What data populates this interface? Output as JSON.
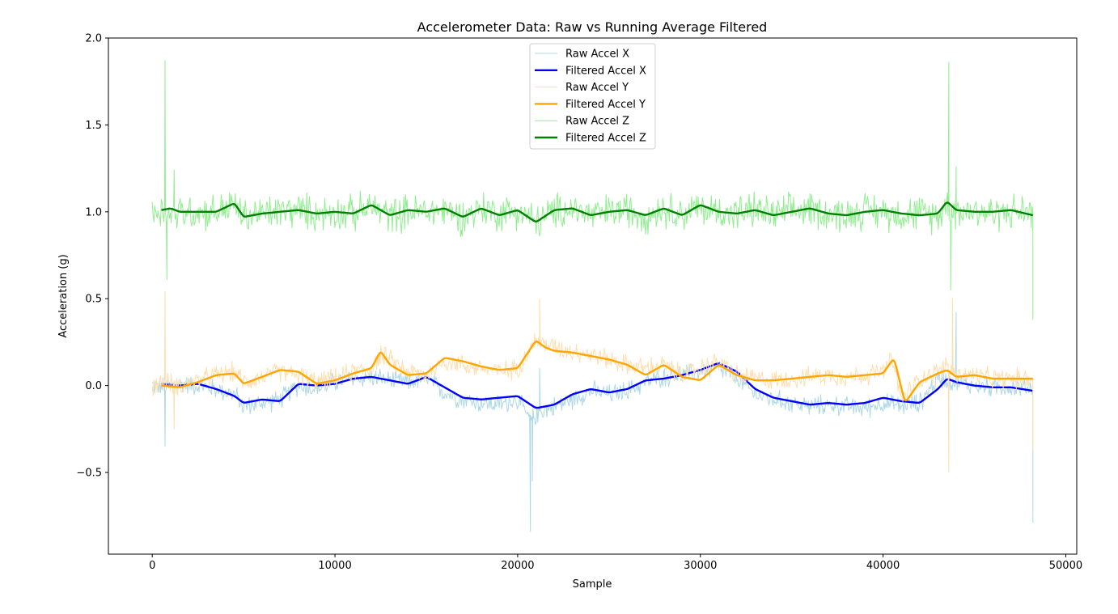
{
  "chart_data": {
    "type": "line",
    "title": "Accelerometer Data: Raw vs Running Average Filtered",
    "xlabel": "Sample",
    "ylabel": "Acceleration (g)",
    "xlim": [
      -2400,
      50600
    ],
    "ylim": [
      -0.97,
      2.0
    ],
    "xticks": [
      0,
      10000,
      20000,
      30000,
      40000,
      50000
    ],
    "xtick_labels": [
      "0",
      "10000",
      "20000",
      "30000",
      "40000",
      "50000"
    ],
    "yticks": [
      -0.5,
      0.0,
      0.5,
      1.0,
      1.5,
      2.0
    ],
    "ytick_labels": [
      "−0.5",
      "0.0",
      "0.5",
      "1.0",
      "1.5",
      "2.0"
    ],
    "grid": false,
    "legend_position": "top-center",
    "series": [
      {
        "name": "Raw Accel X",
        "color": "#add8e6",
        "style": "raw",
        "x": [
          0,
          700,
          1500,
          2500,
          3500,
          4500,
          5000,
          6000,
          7000,
          8000,
          9000,
          10000,
          11000,
          12000,
          13000,
          14000,
          15000,
          16000,
          17000,
          18000,
          19000,
          20000,
          20700,
          21200,
          22000,
          23000,
          24000,
          25000,
          26000,
          27000,
          28000,
          29000,
          30000,
          31000,
          32000,
          33000,
          34000,
          35000,
          36000,
          37000,
          38000,
          39000,
          40000,
          41000,
          42000,
          43000,
          44000,
          45000,
          46000,
          47000,
          48200
        ],
        "y": [
          0.0,
          -0.01,
          0.01,
          0.0,
          -0.02,
          -0.05,
          -0.12,
          -0.1,
          -0.08,
          0.0,
          -0.02,
          0.02,
          0.04,
          0.05,
          0.03,
          0.02,
          0.04,
          -0.04,
          -0.08,
          -0.1,
          -0.11,
          -0.08,
          -0.2,
          -0.15,
          -0.12,
          -0.08,
          -0.03,
          -0.05,
          -0.03,
          0.02,
          0.05,
          0.06,
          0.08,
          0.1,
          0.04,
          -0.05,
          -0.08,
          -0.1,
          -0.12,
          -0.11,
          -0.12,
          -0.13,
          -0.1,
          -0.12,
          -0.1,
          0.04,
          0.02,
          0.0,
          -0.01,
          -0.01,
          -0.02
        ]
      },
      {
        "name": "Filtered Accel X",
        "color": "#0000ff",
        "style": "filtered",
        "x": [
          500,
          1500,
          2500,
          3500,
          4500,
          5000,
          6000,
          7000,
          8000,
          9000,
          10000,
          11000,
          12000,
          13000,
          14000,
          15000,
          16000,
          17000,
          18000,
          19000,
          20000,
          21000,
          22000,
          23000,
          24000,
          25000,
          26000,
          27000,
          28000,
          29000,
          30000,
          31000,
          32000,
          33000,
          34000,
          35000,
          36000,
          37000,
          38000,
          39000,
          40000,
          41000,
          42000,
          43000,
          43500,
          44000,
          45000,
          46000,
          47000,
          48200
        ],
        "y": [
          0.01,
          0.0,
          0.01,
          -0.02,
          -0.06,
          -0.1,
          -0.08,
          -0.09,
          0.01,
          0.0,
          0.01,
          0.04,
          0.05,
          0.03,
          0.01,
          0.05,
          -0.01,
          -0.07,
          -0.08,
          -0.07,
          -0.06,
          -0.13,
          -0.11,
          -0.05,
          -0.02,
          -0.04,
          -0.02,
          0.03,
          0.04,
          0.06,
          0.09,
          0.13,
          0.08,
          -0.02,
          -0.07,
          -0.09,
          -0.11,
          -0.1,
          -0.11,
          -0.1,
          -0.07,
          -0.09,
          -0.1,
          -0.02,
          0.04,
          0.02,
          0.0,
          -0.01,
          -0.01,
          -0.03
        ]
      },
      {
        "name": "Raw Accel Y",
        "color": "#ffdead",
        "style": "raw",
        "x": [
          0,
          700,
          1500,
          2500,
          3500,
          4500,
          5000,
          6000,
          7000,
          8000,
          9000,
          10000,
          11000,
          12000,
          12500,
          13000,
          14000,
          15000,
          16000,
          17000,
          18000,
          19000,
          20000,
          21000,
          22000,
          23000,
          24000,
          25000,
          26000,
          27000,
          28000,
          29000,
          30000,
          31000,
          32000,
          33000,
          34000,
          35000,
          36000,
          37000,
          38000,
          39000,
          40000,
          40500,
          41000,
          42000,
          43000,
          43500,
          44000,
          45000,
          46000,
          47000,
          48200
        ],
        "y": [
          0.0,
          0.02,
          0.0,
          0.03,
          0.06,
          0.08,
          0.02,
          0.05,
          0.08,
          0.06,
          0.02,
          0.04,
          0.08,
          0.1,
          0.18,
          0.15,
          0.08,
          0.06,
          0.14,
          0.12,
          0.1,
          0.08,
          0.1,
          0.26,
          0.22,
          0.2,
          0.18,
          0.15,
          0.12,
          0.1,
          0.12,
          0.06,
          0.1,
          0.14,
          0.06,
          0.04,
          0.03,
          0.04,
          0.05,
          0.06,
          0.05,
          0.06,
          0.08,
          0.15,
          -0.08,
          0.04,
          0.08,
          0.12,
          0.06,
          0.06,
          0.04,
          0.04,
          0.04
        ]
      },
      {
        "name": "Filtered Accel Y",
        "color": "#ffa500",
        "style": "filtered",
        "x": [
          500,
          1500,
          2500,
          3500,
          4500,
          5000,
          6000,
          7000,
          8000,
          9000,
          10000,
          11000,
          12000,
          12500,
          13000,
          14000,
          15000,
          16000,
          17000,
          18000,
          19000,
          20000,
          21000,
          21500,
          22000,
          23000,
          24000,
          25000,
          26000,
          27000,
          28000,
          29000,
          30000,
          31000,
          32000,
          33000,
          34000,
          35000,
          36000,
          37000,
          38000,
          39000,
          40000,
          40600,
          41200,
          42000,
          43000,
          43500,
          44000,
          45000,
          46000,
          47000,
          48200
        ],
        "y": [
          0.0,
          -0.01,
          0.02,
          0.06,
          0.07,
          0.01,
          0.05,
          0.09,
          0.08,
          0.01,
          0.03,
          0.07,
          0.1,
          0.2,
          0.12,
          0.06,
          0.07,
          0.16,
          0.14,
          0.11,
          0.09,
          0.1,
          0.26,
          0.22,
          0.2,
          0.19,
          0.17,
          0.15,
          0.12,
          0.06,
          0.12,
          0.05,
          0.03,
          0.12,
          0.06,
          0.03,
          0.03,
          0.04,
          0.05,
          0.06,
          0.05,
          0.06,
          0.07,
          0.16,
          -0.1,
          0.02,
          0.07,
          0.09,
          0.05,
          0.06,
          0.04,
          0.04,
          0.04
        ]
      },
      {
        "name": "Raw Accel Z",
        "color": "#90ee90",
        "style": "raw",
        "x": [
          0,
          500,
          700,
          1000,
          1500,
          2500,
          3500,
          4500,
          5000,
          6000,
          7000,
          8000,
          9000,
          10000,
          11000,
          12000,
          13000,
          14000,
          15000,
          16000,
          17000,
          18000,
          19000,
          20000,
          21000,
          22000,
          23000,
          24000,
          25000,
          26000,
          27000,
          28000,
          29000,
          30000,
          31000,
          32000,
          33000,
          34000,
          35000,
          36000,
          37000,
          38000,
          39000,
          40000,
          41000,
          42000,
          43000,
          43600,
          44000,
          45000,
          46000,
          47000,
          48200
        ],
        "y": [
          1.0,
          1.0,
          1.02,
          0.98,
          1.0,
          1.0,
          1.0,
          1.04,
          0.97,
          0.99,
          1.0,
          1.01,
          0.99,
          1.0,
          0.99,
          1.03,
          0.98,
          1.0,
          1.0,
          1.01,
          0.97,
          1.02,
          0.99,
          1.01,
          0.94,
          1.0,
          1.02,
          0.98,
          1.0,
          1.01,
          0.98,
          1.02,
          0.99,
          1.02,
          1.0,
          0.99,
          1.01,
          0.98,
          1.0,
          1.02,
          0.99,
          0.98,
          1.01,
          1.0,
          0.99,
          0.99,
          0.98,
          1.05,
          1.0,
          1.01,
          0.99,
          1.0,
          1.0
        ]
      },
      {
        "name": "Filtered Accel Z",
        "color": "#008000",
        "style": "filtered",
        "x": [
          500,
          1000,
          1500,
          2500,
          3500,
          4500,
          5000,
          6000,
          7000,
          8000,
          9000,
          10000,
          11000,
          12000,
          13000,
          14000,
          15000,
          16000,
          17000,
          18000,
          19000,
          20000,
          21000,
          22000,
          23000,
          24000,
          25000,
          26000,
          27000,
          28000,
          29000,
          30000,
          31000,
          32000,
          33000,
          34000,
          35000,
          36000,
          37000,
          38000,
          39000,
          40000,
          41000,
          42000,
          43000,
          43500,
          44000,
          45000,
          46000,
          47000,
          48200
        ],
        "y": [
          1.01,
          1.02,
          1.0,
          1.0,
          1.0,
          1.05,
          0.97,
          0.99,
          1.0,
          1.01,
          0.99,
          1.0,
          0.99,
          1.04,
          0.98,
          1.01,
          1.0,
          1.02,
          0.97,
          1.02,
          0.98,
          1.01,
          0.94,
          1.01,
          1.02,
          0.98,
          1.0,
          1.01,
          0.98,
          1.02,
          0.98,
          1.04,
          1.0,
          0.99,
          1.01,
          0.98,
          1.0,
          1.02,
          0.99,
          0.98,
          1.0,
          1.01,
          0.99,
          0.98,
          0.99,
          1.06,
          1.01,
          1.0,
          1.0,
          1.01,
          0.98
        ]
      }
    ],
    "raw_spikes": [
      {
        "series": "Raw Accel Z",
        "x": [
          700,
          800,
          1200,
          43600,
          43700,
          44000,
          48200
        ],
        "y": [
          1.87,
          0.61,
          1.24,
          1.86,
          0.55,
          1.26,
          0.38
        ]
      },
      {
        "series": "Raw Accel Y",
        "x": [
          700,
          1200,
          21200,
          43600,
          43800,
          48200
        ],
        "y": [
          0.54,
          -0.25,
          0.5,
          -0.5,
          0.5,
          -0.37
        ]
      },
      {
        "series": "Raw Accel X",
        "x": [
          700,
          20700,
          20800,
          21200,
          44000,
          48200
        ],
        "y": [
          -0.35,
          -0.84,
          -0.55,
          0.1,
          0.42,
          -0.79
        ]
      }
    ]
  }
}
